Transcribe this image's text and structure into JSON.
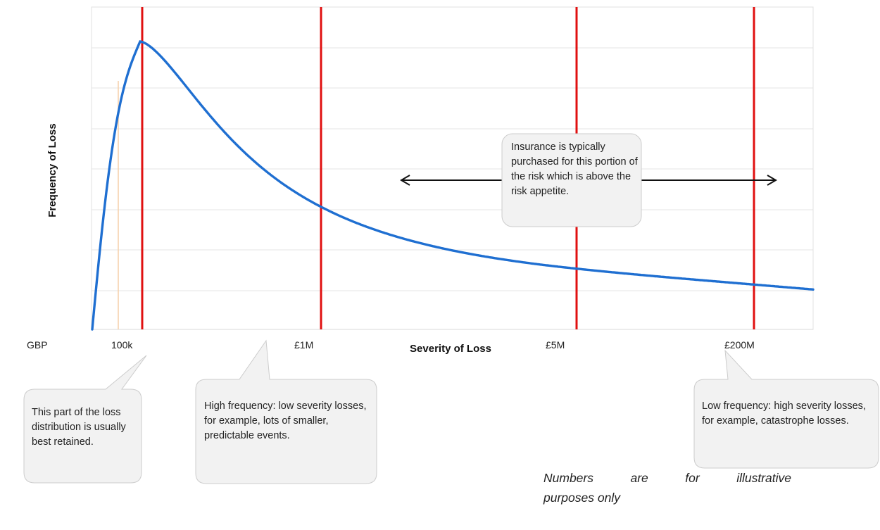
{
  "chart_data": {
    "type": "line",
    "title": "",
    "xlabel": "Severity of Loss",
    "ylabel": "Frequency of Loss",
    "currency_label": "GBP",
    "x_tick_labels": [
      "100k",
      "£1M",
      "£5M",
      "£200M"
    ],
    "grid": true,
    "series": [
      {
        "values_description_points": [
          {
            "x": "0",
            "y": 0.0
          },
          {
            "x": "100k",
            "y": 1.0
          },
          {
            "x": "£1M",
            "y": 0.31
          },
          {
            "x": "£5M",
            "y": 0.08
          },
          {
            "x": "£200M",
            "y": 0.04
          }
        ]
      }
    ],
    "thresholds": [
      "100k",
      "£1M",
      "£5M",
      "£200M"
    ],
    "annotations": {
      "retained": "This part of the loss distribution is usually best retained.",
      "high_frequency": "High frequency: low severity losses, for example, lots of smaller, predictable events.",
      "insurance": "Insurance is typically purchased for this portion of the risk which is above the risk appetite.",
      "low_frequency": "Low frequency: high severity losses, for example, catastrophe losses."
    }
  },
  "note": {
    "line1_words": [
      "Numbers",
      "are",
      "for",
      "illustrative"
    ],
    "line2": "purposes only"
  },
  "colors": {
    "curve": "#1f6fd1",
    "threshold": "#e01010",
    "grid": "#e6e6e6",
    "callout_fill": "#f2f2f2",
    "callout_stroke": "#cccccc"
  }
}
